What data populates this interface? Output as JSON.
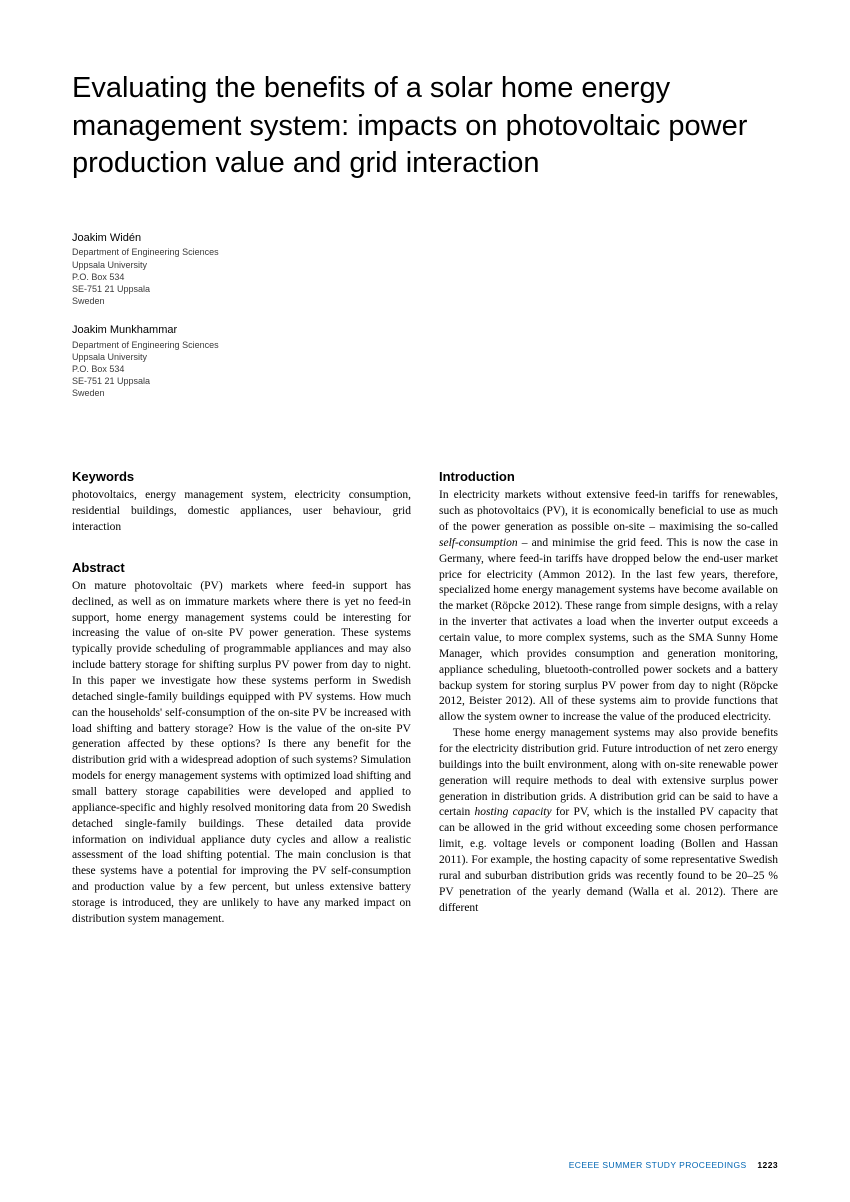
{
  "title": "Evaluating the benefits of a solar home energy management system: impacts on photovoltaic power production value and grid interaction",
  "authors": [
    {
      "name": "Joakim Widén",
      "lines": [
        "Department of Engineering Sciences",
        "Uppsala University",
        "P.O. Box 534",
        "SE-751 21 Uppsala",
        "Sweden"
      ]
    },
    {
      "name": "Joakim Munkhammar",
      "lines": [
        "Department of Engineering Sciences",
        "Uppsala University",
        "P.O. Box 534",
        "SE-751 21 Uppsala",
        "Sweden"
      ]
    }
  ],
  "sections": {
    "keywords": {
      "heading": "Keywords",
      "text": "photovoltaics, energy management system, electricity consumption, residential buildings, domestic appliances, user behaviour, grid interaction"
    },
    "abstract": {
      "heading": "Abstract",
      "text": "On mature photovoltaic (PV) markets where feed-in support has declined, as well as on immature markets where there is yet no feed-in support, home energy management systems could be interesting for increasing the value of on-site PV power generation. These systems typically provide scheduling of programmable appliances and may also include battery storage for shifting surplus PV power from day to night. In this paper we investigate how these systems perform in Swedish detached single-family buildings equipped with PV systems. How much can the households' self-consumption of the on-site PV be increased with load shifting and battery storage? How is the value of the on-site PV generation affected by these options? Is there any benefit for the distribution grid with a widespread adoption of such systems? Simulation models for energy management systems with optimized load shifting and small battery storage capabilities were developed and applied to appliance-specific and highly resolved monitoring data from 20 Swedish detached single-family buildings. These detailed data provide information on individual appliance duty cycles and allow a realistic assessment of the load shifting potential. The main conclusion is that these systems have a potential for improving the PV self-consumption and production value by a few percent, but unless extensive battery storage is introduced, they are unlikely to have any marked impact on distribution system management."
    },
    "introduction": {
      "heading": "Introduction",
      "p1a": "In electricity markets without extensive feed-in tariffs for renewables, such as photovoltaics (PV), it is economically beneficial to use as much of the power generation as possible on-site – maximising the so-called ",
      "p1_em": "self-consumption",
      "p1b": " – and minimise the grid feed. This is now the case in Germany, where feed-in tariffs have dropped below the end-user market price for electricity (Ammon 2012). In the last few years, therefore, specialized home energy management systems have become available on the market (Röpcke 2012). These range from simple designs, with a relay in the inverter that activates a load when the inverter output exceeds a certain value, to more complex systems, such as the SMA Sunny Home Manager, which provides consumption and generation monitoring, appliance scheduling, bluetooth-controlled power sockets and a battery backup system for storing surplus PV power from day to night (Röpcke 2012, Beister 2012). All of these systems aim to provide functions that allow the system owner to increase the value of the produced electricity.",
      "p2a": "These home energy management systems may also provide benefits for the electricity distribution grid. Future introduction of net zero energy buildings into the built environment, along with on-site renewable power generation will require methods to deal with extensive surplus power generation in distribution grids. A distribution grid can be said to have a certain ",
      "p2_em": "hosting capacity",
      "p2b": " for PV, which is the installed PV capacity that can be allowed in the grid without exceeding some chosen performance limit, e.g. voltage levels or component loading (Bollen and Hassan 2011). For example, the hosting capacity of some representative Swedish rural and suburban distribution grids was recently found to be 20–25 % PV penetration of the yearly demand (Walla et al. 2012). There are different"
    }
  },
  "footer": {
    "label": "ECEEE SUMMER STUDY PROCEEDINGS",
    "page": "1223"
  }
}
